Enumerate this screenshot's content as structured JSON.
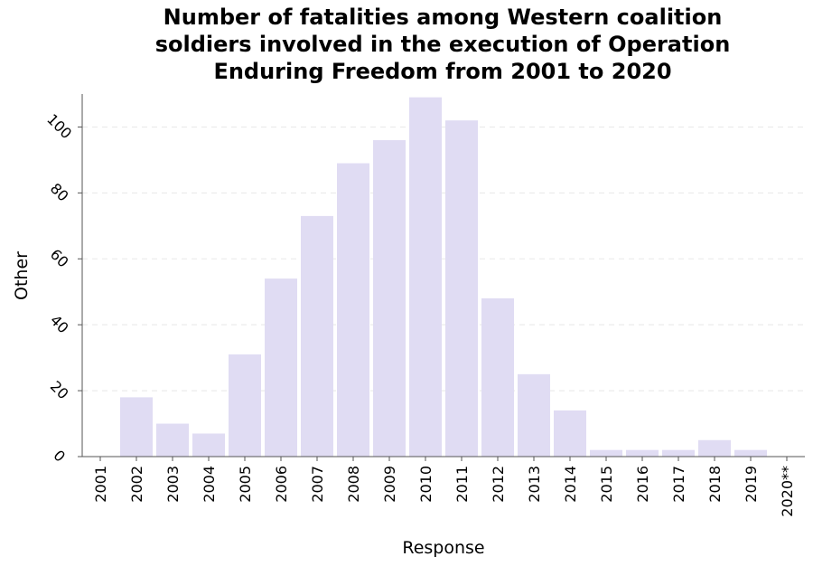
{
  "chart_data": {
    "type": "bar",
    "title_lines": [
      "Number of fatalities among Western coalition",
      "soldiers involved in the execution of Operation",
      "Enduring Freedom from 2001 to 2020"
    ],
    "xlabel": "Response",
    "ylabel": "Other",
    "categories": [
      "2001",
      "2002",
      "2003",
      "2004",
      "2005",
      "2006",
      "2007",
      "2008",
      "2009",
      "2010",
      "2011",
      "2012",
      "2013",
      "2014",
      "2015",
      "2016",
      "2017",
      "2018",
      "2019",
      "2020**"
    ],
    "values": [
      0,
      18,
      10,
      7,
      31,
      54,
      73,
      89,
      96,
      109,
      102,
      48,
      25,
      14,
      2,
      2,
      2,
      5,
      2,
      0
    ],
    "ylim": [
      0,
      110
    ],
    "yticks": [
      0,
      20,
      40,
      60,
      80,
      100
    ],
    "grid": true,
    "bar_color": "#e0dcf3",
    "grid_color": "#e8e8e8"
  }
}
